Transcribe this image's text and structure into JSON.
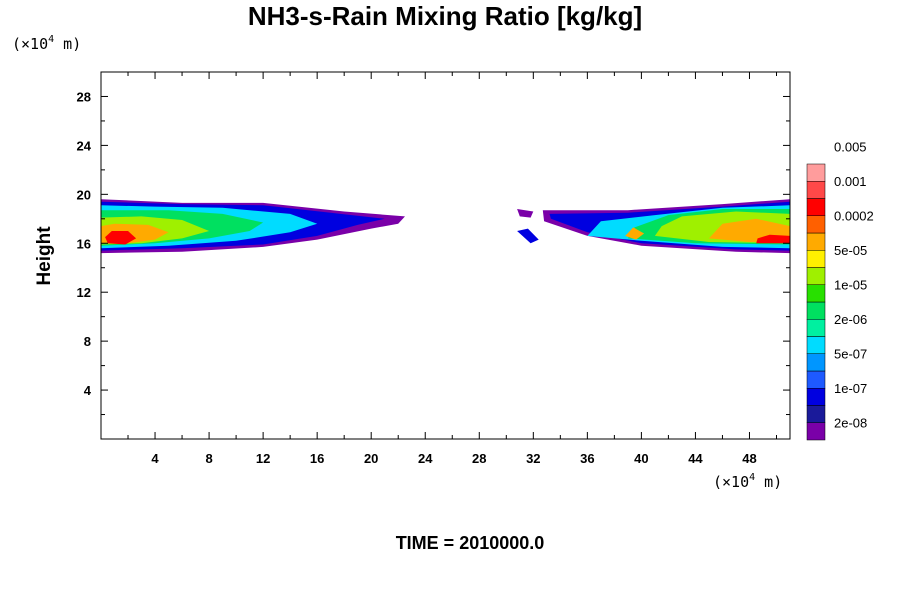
{
  "chart_data": {
    "type": "heatmap",
    "title": "NH3-s-Rain Mixing Ratio [kg/kg]",
    "ylabel": "Height",
    "y_unit": {
      "prefix": "(×10",
      "exponent": "4",
      "suffix": " m)"
    },
    "x_unit": {
      "prefix": "(×10",
      "exponent": "4",
      "suffix": " m)"
    },
    "xlim": [
      0,
      51
    ],
    "ylim": [
      0,
      30
    ],
    "x_ticks": [
      "4",
      "8",
      "12",
      "16",
      "20",
      "24",
      "28",
      "32",
      "36",
      "40",
      "44",
      "48"
    ],
    "x_tick_values": [
      4,
      8,
      12,
      16,
      20,
      24,
      28,
      32,
      36,
      40,
      44,
      48
    ],
    "y_ticks": [
      "4",
      "8",
      "12",
      "16",
      "20",
      "24",
      "28"
    ],
    "y_tick_values": [
      4,
      8,
      12,
      16,
      20,
      24,
      28
    ],
    "footer": "TIME = 2010000.0",
    "legend": {
      "placement": "right",
      "colors": [
        "#7a00a8",
        "#1a1a9a",
        "#0000e0",
        "#1e5aff",
        "#0096ff",
        "#00dcff",
        "#00f0a0",
        "#00e060",
        "#28e000",
        "#9ff000",
        "#fff000",
        "#ffaa00",
        "#ff6000",
        "#ff0000",
        "#ff4848",
        "#ff9c9c"
      ],
      "labels": [
        "2e-08",
        "1e-07",
        "5e-07",
        "2e-06",
        "1e-05",
        "5e-05",
        "0.0002",
        "0.001",
        "0.005"
      ]
    },
    "regions": [
      {
        "layer": 0,
        "color": "#7a00a8",
        "points": [
          [
            0,
            15.2
          ],
          [
            6,
            15.3
          ],
          [
            12,
            15.7
          ],
          [
            16,
            16.3
          ],
          [
            20,
            17.2
          ],
          [
            22,
            17.6
          ],
          [
            22.5,
            18.2
          ],
          [
            18,
            18.6
          ],
          [
            12,
            19.3
          ],
          [
            6,
            19.3
          ],
          [
            0,
            19.6
          ]
        ]
      },
      {
        "layer": 0,
        "color": "#7a00a8",
        "points": [
          [
            30.8,
            18.8
          ],
          [
            32,
            18.6
          ],
          [
            31.8,
            18.1
          ],
          [
            31,
            18.2
          ]
        ]
      },
      {
        "layer": 0,
        "color": "#7a00a8",
        "points": [
          [
            32.7,
            18.7
          ],
          [
            39,
            18.7
          ],
          [
            46,
            19.2
          ],
          [
            51,
            19.6
          ],
          [
            51,
            15.2
          ],
          [
            47,
            15.3
          ],
          [
            40,
            15.8
          ],
          [
            36,
            16.6
          ],
          [
            32.8,
            17.8
          ]
        ]
      },
      {
        "layer": 1,
        "color": "#0000e0",
        "points": [
          [
            30.8,
            17.0
          ],
          [
            31.8,
            16.0
          ],
          [
            32.4,
            16.3
          ],
          [
            31.6,
            17.2
          ]
        ]
      },
      {
        "layer": 1,
        "color": "#0000e0",
        "points": [
          [
            0,
            15.4
          ],
          [
            6,
            15.6
          ],
          [
            12,
            15.9
          ],
          [
            16,
            16.6
          ],
          [
            19,
            17.5
          ],
          [
            21,
            18.0
          ],
          [
            17,
            18.5
          ],
          [
            12,
            19.1
          ],
          [
            6,
            19.2
          ],
          [
            0,
            19.4
          ]
        ]
      },
      {
        "layer": 1,
        "color": "#0000e0",
        "points": [
          [
            33.2,
            18.4
          ],
          [
            39,
            18.5
          ],
          [
            46,
            19.0
          ],
          [
            51,
            19.4
          ],
          [
            51,
            15.4
          ],
          [
            47,
            15.5
          ],
          [
            40,
            16.0
          ],
          [
            36,
            16.9
          ],
          [
            33.3,
            18.0
          ]
        ]
      },
      {
        "layer": 2,
        "color": "#00dcff",
        "points": [
          [
            0,
            15.6
          ],
          [
            5,
            15.8
          ],
          [
            10,
            16.2
          ],
          [
            14,
            16.9
          ],
          [
            16,
            17.6
          ],
          [
            14,
            18.4
          ],
          [
            9,
            18.9
          ],
          [
            4,
            19.0
          ],
          [
            0,
            19.1
          ]
        ]
      },
      {
        "layer": 2,
        "color": "#00dcff",
        "points": [
          [
            36,
            16.6
          ],
          [
            40,
            16.2
          ],
          [
            46,
            15.7
          ],
          [
            51,
            15.6
          ],
          [
            51,
            19.1
          ],
          [
            46,
            18.9
          ],
          [
            41,
            18.3
          ],
          [
            37,
            17.8
          ]
        ]
      },
      {
        "layer": 3,
        "color": "#00e060",
        "points": [
          [
            0,
            15.8
          ],
          [
            4,
            16.0
          ],
          [
            8,
            16.4
          ],
          [
            11,
            17.0
          ],
          [
            12,
            17.7
          ],
          [
            9,
            18.4
          ],
          [
            5,
            18.7
          ],
          [
            0,
            18.7
          ]
        ]
      },
      {
        "layer": 3,
        "color": "#00e060",
        "points": [
          [
            39,
            16.4
          ],
          [
            44,
            16.0
          ],
          [
            51,
            15.9
          ],
          [
            51,
            18.8
          ],
          [
            46,
            18.8
          ],
          [
            42,
            18.3
          ],
          [
            39.5,
            17.3
          ]
        ]
      },
      {
        "layer": 4,
        "color": "#9ff000",
        "points": [
          [
            0,
            15.9
          ],
          [
            3,
            16.0
          ],
          [
            6,
            16.4
          ],
          [
            8,
            17.0
          ],
          [
            6,
            17.9
          ],
          [
            3,
            18.2
          ],
          [
            0,
            18.1
          ]
        ]
      },
      {
        "layer": 4,
        "color": "#9ff000",
        "points": [
          [
            41,
            16.6
          ],
          [
            45,
            16.1
          ],
          [
            51,
            16.0
          ],
          [
            51,
            18.4
          ],
          [
            47,
            18.6
          ],
          [
            43,
            18.2
          ],
          [
            41.5,
            17.4
          ]
        ]
      },
      {
        "layer": 5,
        "color": "#ffaa00",
        "points": [
          [
            0,
            16.0
          ],
          [
            2,
            16.0
          ],
          [
            4,
            16.3
          ],
          [
            5,
            16.9
          ],
          [
            3.5,
            17.5
          ],
          [
            1,
            17.6
          ],
          [
            0,
            17.4
          ]
        ]
      },
      {
        "layer": 5,
        "color": "#ffaa00",
        "points": [
          [
            38.8,
            16.6
          ],
          [
            39.6,
            16.3
          ],
          [
            40.2,
            16.8
          ],
          [
            39.4,
            17.3
          ]
        ]
      },
      {
        "layer": 5,
        "color": "#ffaa00",
        "points": [
          [
            45,
            16.4
          ],
          [
            48,
            16.1
          ],
          [
            51,
            16.2
          ],
          [
            51,
            17.4
          ],
          [
            48.5,
            18.0
          ],
          [
            46,
            17.6
          ]
        ]
      },
      {
        "layer": 6,
        "color": "#ff0000",
        "points": [
          [
            0.5,
            16.0
          ],
          [
            1.8,
            15.9
          ],
          [
            2.6,
            16.4
          ],
          [
            2.0,
            17.0
          ],
          [
            0.8,
            17.0
          ],
          [
            0.3,
            16.5
          ]
        ]
      },
      {
        "layer": 6,
        "color": "#ff0000",
        "points": [
          [
            48.5,
            16.0
          ],
          [
            51,
            16.0
          ],
          [
            51,
            16.6
          ],
          [
            49.5,
            16.7
          ],
          [
            48.6,
            16.4
          ]
        ]
      }
    ]
  }
}
